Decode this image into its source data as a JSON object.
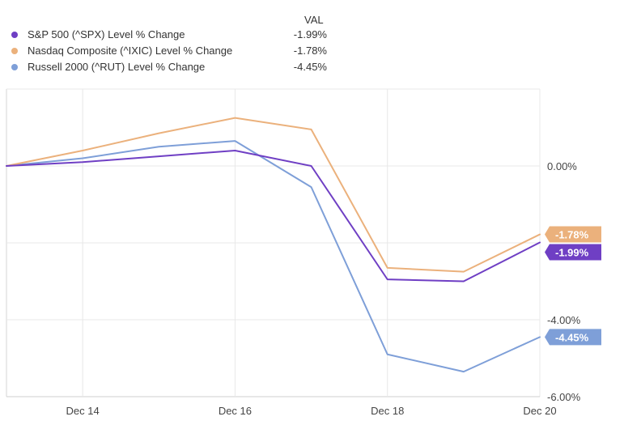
{
  "legend": {
    "header": "VAL"
  },
  "chart_data": {
    "type": "line",
    "x": [
      "Dec 13",
      "Dec 14",
      "Dec 15",
      "Dec 16",
      "Dec 17",
      "Dec 18",
      "Dec 19",
      "Dec 20"
    ],
    "xticks": [
      "Dec 14",
      "Dec 16",
      "Dec 18",
      "Dec 20"
    ],
    "yticks": [
      "0.00%",
      "-4.00%",
      "-6.00%"
    ],
    "ylim": [
      -6,
      2
    ],
    "grid": true,
    "legend_position": "top-left",
    "series": [
      {
        "name": "S&P 500 (^SPX) Level % Change",
        "color": "#6f3fc4",
        "last_label": "-1.99%",
        "values": [
          0,
          0.1,
          0.25,
          0.4,
          0.0,
          -2.95,
          -3.0,
          -1.99
        ]
      },
      {
        "name": "Nasdaq Composite (^IXIC) Level % Change",
        "color": "#ebb17c",
        "last_label": "-1.78%",
        "values": [
          0,
          0.4,
          0.85,
          1.25,
          0.95,
          -2.65,
          -2.75,
          -1.78
        ]
      },
      {
        "name": "Russell 2000 (^RUT) Level % Change",
        "color": "#7e9fd8",
        "last_label": "-4.45%",
        "values": [
          0,
          0.2,
          0.5,
          0.65,
          -0.55,
          -4.9,
          -5.35,
          -4.45
        ]
      }
    ]
  }
}
